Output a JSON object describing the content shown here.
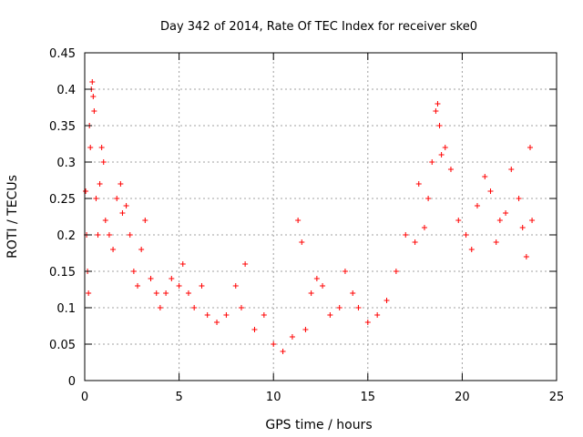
{
  "chart_data": {
    "type": "scatter",
    "title": "Day 342 of 2014, Rate Of TEC Index for receiver ske0",
    "xlabel": "GPS time / hours",
    "ylabel": "ROTI / TECUs",
    "xlim": [
      0,
      25
    ],
    "ylim": [
      0,
      0.45
    ],
    "x_ticks": [
      0,
      5,
      10,
      15,
      20,
      25
    ],
    "y_ticks": [
      0,
      0.05,
      0.1,
      0.15,
      0.2,
      0.25,
      0.3,
      0.35,
      0.4,
      0.45
    ],
    "x_tick_labels": [
      "0",
      "5",
      "10",
      "15",
      "20",
      "25"
    ],
    "y_tick_labels": [
      "0",
      "0.05",
      "0.1",
      "0.15",
      "0.2",
      "0.25",
      "0.3",
      "0.35",
      "0.4",
      "0.45"
    ],
    "grid": true,
    "marker": "+",
    "marker_color": "#ff0000",
    "series": [
      {
        "points": [
          [
            0.05,
            0.26
          ],
          [
            0.1,
            0.2
          ],
          [
            0.15,
            0.15
          ],
          [
            0.2,
            0.12
          ],
          [
            0.25,
            0.35
          ],
          [
            0.3,
            0.32
          ],
          [
            0.35,
            0.4
          ],
          [
            0.4,
            0.41
          ],
          [
            0.45,
            0.39
          ],
          [
            0.5,
            0.37
          ],
          [
            0.6,
            0.25
          ],
          [
            0.7,
            0.2
          ],
          [
            0.8,
            0.27
          ],
          [
            0.9,
            0.32
          ],
          [
            1.0,
            0.3
          ],
          [
            1.1,
            0.22
          ],
          [
            1.3,
            0.2
          ],
          [
            1.5,
            0.18
          ],
          [
            1.7,
            0.25
          ],
          [
            1.9,
            0.27
          ],
          [
            2.0,
            0.23
          ],
          [
            2.2,
            0.24
          ],
          [
            2.4,
            0.2
          ],
          [
            2.6,
            0.15
          ],
          [
            2.8,
            0.13
          ],
          [
            3.0,
            0.18
          ],
          [
            3.2,
            0.22
          ],
          [
            3.5,
            0.14
          ],
          [
            3.8,
            0.12
          ],
          [
            4.0,
            0.1
          ],
          [
            4.3,
            0.12
          ],
          [
            4.6,
            0.14
          ],
          [
            5.0,
            0.13
          ],
          [
            5.2,
            0.16
          ],
          [
            5.5,
            0.12
          ],
          [
            5.8,
            0.1
          ],
          [
            6.2,
            0.13
          ],
          [
            6.5,
            0.09
          ],
          [
            7.0,
            0.08
          ],
          [
            7.5,
            0.09
          ],
          [
            8.0,
            0.13
          ],
          [
            8.3,
            0.1
          ],
          [
            8.5,
            0.16
          ],
          [
            9.0,
            0.07
          ],
          [
            9.5,
            0.09
          ],
          [
            10.0,
            0.05
          ],
          [
            10.5,
            0.04
          ],
          [
            11.0,
            0.06
          ],
          [
            11.3,
            0.22
          ],
          [
            11.5,
            0.19
          ],
          [
            11.7,
            0.07
          ],
          [
            12.0,
            0.12
          ],
          [
            12.3,
            0.14
          ],
          [
            12.6,
            0.13
          ],
          [
            13.0,
            0.09
          ],
          [
            13.5,
            0.1
          ],
          [
            13.8,
            0.15
          ],
          [
            14.2,
            0.12
          ],
          [
            14.5,
            0.1
          ],
          [
            15.0,
            0.08
          ],
          [
            15.5,
            0.09
          ],
          [
            16.0,
            0.11
          ],
          [
            16.5,
            0.15
          ],
          [
            17.0,
            0.2
          ],
          [
            17.5,
            0.19
          ],
          [
            17.7,
            0.27
          ],
          [
            18.0,
            0.21
          ],
          [
            18.2,
            0.25
          ],
          [
            18.4,
            0.3
          ],
          [
            18.6,
            0.37
          ],
          [
            18.7,
            0.38
          ],
          [
            18.8,
            0.35
          ],
          [
            18.9,
            0.31
          ],
          [
            19.1,
            0.32
          ],
          [
            19.4,
            0.29
          ],
          [
            19.8,
            0.22
          ],
          [
            20.2,
            0.2
          ],
          [
            20.5,
            0.18
          ],
          [
            20.8,
            0.24
          ],
          [
            21.2,
            0.28
          ],
          [
            21.5,
            0.26
          ],
          [
            21.8,
            0.19
          ],
          [
            22.0,
            0.22
          ],
          [
            22.3,
            0.23
          ],
          [
            22.6,
            0.29
          ],
          [
            23.0,
            0.25
          ],
          [
            23.2,
            0.21
          ],
          [
            23.4,
            0.17
          ],
          [
            23.6,
            0.32
          ],
          [
            23.7,
            0.22
          ]
        ]
      }
    ]
  }
}
